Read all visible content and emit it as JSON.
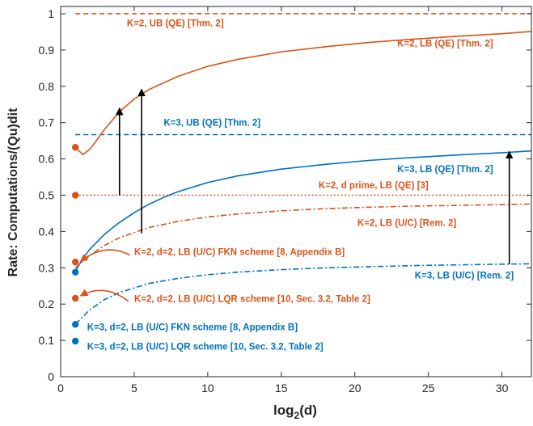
{
  "chart_data": {
    "type": "line",
    "xlabel_base": "log",
    "xlabel_sub": "2",
    "xlabel_tail": "(d)",
    "ylabel": "Rate: Computations/(Qu)dit",
    "xlim": [
      0,
      32
    ],
    "ylim": [
      0,
      1.02
    ],
    "xticks": [
      0,
      5,
      10,
      15,
      20,
      25,
      30
    ],
    "yticks": [
      0,
      0.1,
      0.2,
      0.3,
      0.4,
      0.5,
      0.6,
      0.7,
      0.8,
      0.9,
      1
    ],
    "grid": false,
    "colors": {
      "orange": "#D95319",
      "blue": "#0072BD",
      "axis": "#262626"
    },
    "series": [
      {
        "name": "K=2, UB (QE) [Thm. 2]",
        "color": "orange",
        "style": "dashed",
        "x": [
          1,
          32
        ],
        "y": [
          1.0,
          1.0
        ]
      },
      {
        "name": "K=3, UB (QE) [Thm. 2]",
        "color": "blue",
        "style": "dashed",
        "x": [
          1,
          32
        ],
        "y": [
          0.667,
          0.667
        ]
      },
      {
        "name": "K=2, d prime, LB (QE) [3]",
        "color": "orange",
        "style": "dotted",
        "x": [
          1,
          32
        ],
        "y": [
          0.5,
          0.5
        ]
      },
      {
        "name": "K=2, LB (QE) [Thm. 2]",
        "color": "orange",
        "style": "solid",
        "x": [
          1,
          1.5,
          2,
          3,
          4,
          5,
          6,
          8,
          10,
          12,
          15,
          18,
          21,
          24,
          27,
          30,
          32
        ],
        "y": [
          0.632,
          0.612,
          0.627,
          0.682,
          0.73,
          0.765,
          0.791,
          0.828,
          0.855,
          0.874,
          0.895,
          0.909,
          0.921,
          0.93,
          0.938,
          0.945,
          0.951
        ]
      },
      {
        "name": "K=3, LB (QE) [Thm. 2]",
        "color": "blue",
        "style": "solid",
        "x": [
          1,
          1.5,
          2,
          3,
          4,
          5,
          6,
          7,
          8,
          10,
          12,
          15,
          18,
          21,
          24,
          27,
          30,
          32
        ],
        "y": [
          0.29,
          0.325,
          0.352,
          0.393,
          0.425,
          0.452,
          0.475,
          0.494,
          0.51,
          0.535,
          0.553,
          0.572,
          0.585,
          0.596,
          0.604,
          0.611,
          0.617,
          0.622
        ]
      },
      {
        "name": "K=2, LB (U/C) [Rem. 2]",
        "color": "orange",
        "style": "dashdot",
        "x": [
          1,
          2,
          3,
          4,
          6,
          8,
          10,
          12,
          15,
          18,
          21,
          24,
          27,
          30,
          32
        ],
        "y": [
          0.3,
          0.335,
          0.362,
          0.383,
          0.411,
          0.428,
          0.44,
          0.448,
          0.457,
          0.463,
          0.467,
          0.47,
          0.472,
          0.474,
          0.476
        ]
      },
      {
        "name": "K=3, LB (U/C) [Rem. 2]",
        "color": "blue",
        "style": "dashdot",
        "x": [
          1,
          2,
          3,
          4,
          6,
          8,
          10,
          12,
          15,
          18,
          21,
          24,
          27,
          30,
          32
        ],
        "y": [
          0.145,
          0.185,
          0.213,
          0.232,
          0.257,
          0.271,
          0.281,
          0.288,
          0.295,
          0.3,
          0.303,
          0.306,
          0.308,
          0.31,
          0.311
        ]
      }
    ],
    "points": [
      {
        "x": 1,
        "y": 0.632,
        "color": "orange"
      },
      {
        "x": 1,
        "y": 0.5,
        "color": "orange"
      },
      {
        "x": 1,
        "y": 0.316,
        "color": "orange"
      },
      {
        "x": 1,
        "y": 0.288,
        "color": "blue"
      },
      {
        "x": 1,
        "y": 0.216,
        "color": "orange"
      },
      {
        "x": 1,
        "y": 0.144,
        "color": "blue"
      },
      {
        "x": 1,
        "y": 0.098,
        "color": "blue"
      }
    ],
    "annotations": [
      {
        "text": "K=2, UB (QE) [Thm. 2]",
        "x": 4.5,
        "y": 0.965,
        "color": "orange",
        "anchor": "start"
      },
      {
        "text": "K=2, LB (QE) [Thm. 2]",
        "x": 29.4,
        "y": 0.91,
        "color": "orange",
        "anchor": "end"
      },
      {
        "text": "K=3, UB (QE) [Thm. 2]",
        "x": 7.0,
        "y": 0.692,
        "color": "blue",
        "anchor": "start"
      },
      {
        "text": "K=3, LB (QE) [Thm. 2]",
        "x": 29.4,
        "y": 0.563,
        "color": "blue",
        "anchor": "end"
      },
      {
        "text": "K=2, d prime, LB (QE) [3]",
        "x": 25.0,
        "y": 0.519,
        "color": "orange",
        "anchor": "end"
      },
      {
        "text": "K=2, LB (U/C) [Rem. 2]",
        "x": 26.9,
        "y": 0.415,
        "color": "orange",
        "anchor": "end"
      },
      {
        "text": "K=2, d=2, LB (U/C) FKN scheme [8, Appendix B]",
        "x": 5.0,
        "y": 0.335,
        "color": "orange",
        "anchor": "start"
      },
      {
        "text": "K=3, LB (U/C) [Rem. 2]",
        "x": 30.8,
        "y": 0.271,
        "color": "blue",
        "anchor": "end"
      },
      {
        "text": "K=2, d=2, LB (U/C) LQR scheme [10, Sec. 3.2, Table 2]",
        "x": 5.0,
        "y": 0.206,
        "color": "orange",
        "anchor": "start"
      },
      {
        "text": "K=3, d=2, LB (U/C) FKN scheme [8, Appendix B]",
        "x": 1.8,
        "y": 0.128,
        "color": "blue",
        "anchor": "start"
      },
      {
        "text": "K=3, d=2, LB (U/C) LQR scheme [10, Sec. 3.2, Table 2]",
        "x": 1.8,
        "y": 0.075,
        "color": "blue",
        "anchor": "start"
      }
    ],
    "arrows": [
      {
        "x": 4.0,
        "y1": 0.5,
        "y2": 0.74
      },
      {
        "x": 5.5,
        "y1": 0.395,
        "y2": 0.792
      },
      {
        "x": 30.5,
        "y1": 0.31,
        "y2": 0.62
      }
    ],
    "curved_pointers": [
      {
        "from_x": 4.7,
        "from_y": 0.335,
        "to_x": 1.35,
        "to_y": 0.318
      },
      {
        "from_x": 4.6,
        "from_y": 0.208,
        "to_x": 1.35,
        "to_y": 0.223
      }
    ]
  }
}
